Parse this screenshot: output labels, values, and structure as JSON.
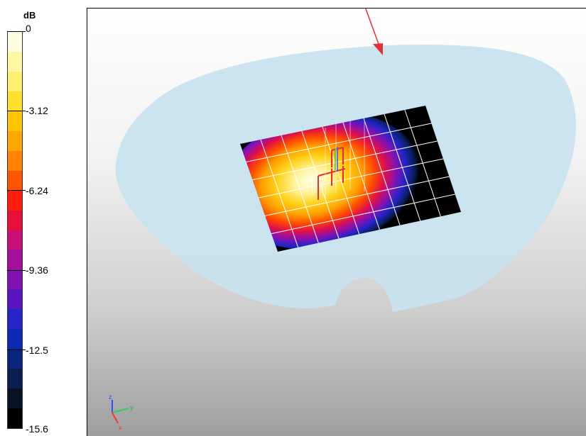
{
  "legend": {
    "unit": "dB",
    "tick_labels": [
      "0",
      "-3.12",
      "-6.24",
      "-9.36",
      "-12.5",
      "-15.6"
    ],
    "colors": [
      "#fffde0",
      "#fff7a6",
      "#ffef70",
      "#ffe02a",
      "#ffc400",
      "#ffa600",
      "#ff8200",
      "#ff5500",
      "#ff1e0e",
      "#e8103a",
      "#c8107a",
      "#a3109e",
      "#8010b0",
      "#5a14c0",
      "#2424c8",
      "#0a2ab4",
      "#0a2580",
      "#0a1e50",
      "#081224",
      "#000000"
    ]
  },
  "scene": {
    "surface_color": "#c9e3ef",
    "grid_cell_color": "#000000",
    "grid_line_color": "#ffffff",
    "antenna_color": "#e0303a",
    "axis_labels": {
      "z": "z",
      "y": "y",
      "x": "x"
    }
  }
}
